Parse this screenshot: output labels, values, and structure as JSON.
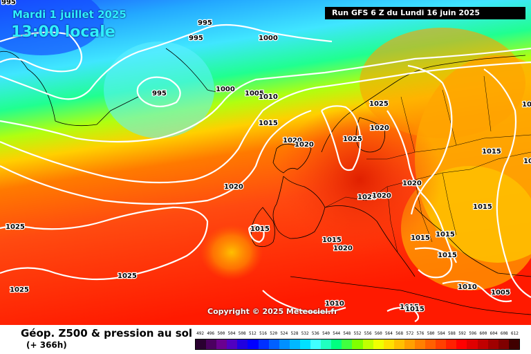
{
  "header": {
    "date": "Mardi 1 juillet 2025",
    "time": "13:00 locale",
    "run": "Run GFS 6 Z du Lundi 16 juin 2025"
  },
  "copyright": "Copyright © 2025 Meteociel.fr",
  "footer": {
    "title": "Géop. Z500 & pression au sol",
    "subtitle": "(+ 366h)"
  },
  "legend": {
    "values": [
      "492",
      "496",
      "500",
      "504",
      "508",
      "512",
      "516",
      "520",
      "524",
      "528",
      "532",
      "536",
      "540",
      "544",
      "548",
      "552",
      "556",
      "560",
      "564",
      "568",
      "572",
      "576",
      "580",
      "584",
      "588",
      "592",
      "596",
      "600",
      "604",
      "608",
      "612"
    ],
    "colors": [
      "#2a0030",
      "#4b0060",
      "#6a0090",
      "#5000c0",
      "#2000e0",
      "#0000ff",
      "#0030ff",
      "#0060ff",
      "#0090ff",
      "#00b8ff",
      "#00e0ff",
      "#40ffff",
      "#20ffc0",
      "#00ff80",
      "#40ff40",
      "#80ff00",
      "#c0ff00",
      "#f0ff00",
      "#ffe000",
      "#ffc000",
      "#ffa000",
      "#ff8000",
      "#ff6000",
      "#ff4000",
      "#ff2000",
      "#ff0000",
      "#e00000",
      "#c00000",
      "#a00000",
      "#800000",
      "#400000"
    ]
  },
  "pressure_labels": [
    "995",
    "995",
    "995",
    "1000",
    "995",
    "1000",
    "1005",
    "1010",
    "1015",
    "1025",
    "1020",
    "1020",
    "1020",
    "1025",
    "1020",
    "1020",
    "1020",
    "1020",
    "1015",
    "1015",
    "1015",
    "1015",
    "1015",
    "1025",
    "1015",
    "1020",
    "1015",
    "1025",
    "1025",
    "1010",
    "1005",
    "1015",
    "1010",
    "1015",
    "1015",
    "1015"
  ]
}
